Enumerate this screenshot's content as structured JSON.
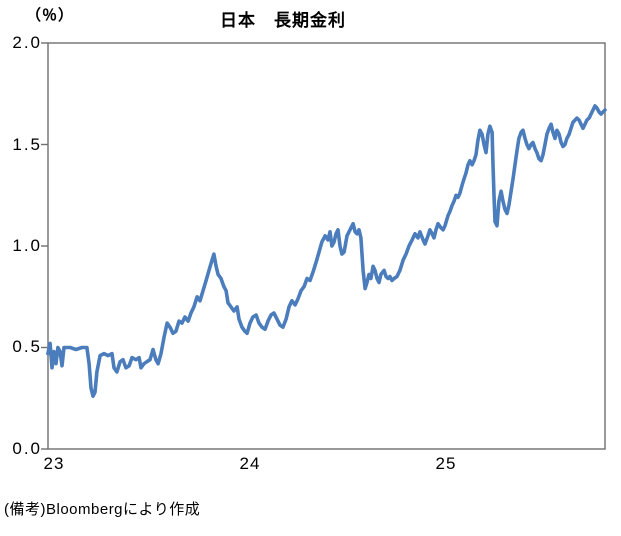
{
  "title": "日本　長期金利",
  "footer": "(備考)Bloombergにより作成",
  "chart_data": {
    "type": "line",
    "title": "日本　長期金利",
    "ylabel_unit": "（％）",
    "xlabel": "",
    "ylabel": "",
    "ylim": [
      0.0,
      2.0
    ],
    "xlim": [
      22.97,
      25.81
    ],
    "grid": false,
    "legend": "none",
    "colors": {
      "line": "#4b7dbd",
      "axis": "#6f6f6f",
      "text": "#000000"
    },
    "y_ticks": [
      {
        "label": "2.0",
        "value": 2.0
      },
      {
        "label": "1.5",
        "value": 1.5
      },
      {
        "label": "1.0",
        "value": 1.0
      },
      {
        "label": "0.5",
        "value": 0.5
      },
      {
        "label": "0.0",
        "value": 0.0
      }
    ],
    "x_ticks": [
      {
        "label": "23",
        "value": 23
      },
      {
        "label": "24",
        "value": 24
      },
      {
        "label": "25",
        "value": 25
      }
    ],
    "series": [
      {
        "name": "長期金利",
        "points": [
          [
            22.969,
            0.47
          ],
          [
            22.98,
            0.52
          ],
          [
            22.99,
            0.4
          ],
          [
            23.0,
            0.48
          ],
          [
            23.01,
            0.42
          ],
          [
            23.02,
            0.5
          ],
          [
            23.031,
            0.48
          ],
          [
            23.041,
            0.41
          ],
          [
            23.051,
            0.5
          ],
          [
            23.082,
            0.5
          ],
          [
            23.112,
            0.49
          ],
          [
            23.143,
            0.5
          ],
          [
            23.168,
            0.5
          ],
          [
            23.179,
            0.42
          ],
          [
            23.189,
            0.3
          ],
          [
            23.199,
            0.26
          ],
          [
            23.209,
            0.28
          ],
          [
            23.219,
            0.38
          ],
          [
            23.235,
            0.46
          ],
          [
            23.255,
            0.47
          ],
          [
            23.276,
            0.46
          ],
          [
            23.296,
            0.47
          ],
          [
            23.306,
            0.4
          ],
          [
            23.321,
            0.38
          ],
          [
            23.337,
            0.43
          ],
          [
            23.352,
            0.44
          ],
          [
            23.367,
            0.4
          ],
          [
            23.383,
            0.41
          ],
          [
            23.398,
            0.45
          ],
          [
            23.418,
            0.44
          ],
          [
            23.434,
            0.45
          ],
          [
            23.444,
            0.4
          ],
          [
            23.459,
            0.42
          ],
          [
            23.474,
            0.43
          ],
          [
            23.49,
            0.44
          ],
          [
            23.505,
            0.49
          ],
          [
            23.52,
            0.44
          ],
          [
            23.531,
            0.42
          ],
          [
            23.546,
            0.47
          ],
          [
            23.561,
            0.55
          ],
          [
            23.577,
            0.62
          ],
          [
            23.592,
            0.6
          ],
          [
            23.607,
            0.57
          ],
          [
            23.622,
            0.58
          ],
          [
            23.638,
            0.63
          ],
          [
            23.653,
            0.62
          ],
          [
            23.668,
            0.65
          ],
          [
            23.684,
            0.63
          ],
          [
            23.699,
            0.67
          ],
          [
            23.714,
            0.7
          ],
          [
            23.73,
            0.75
          ],
          [
            23.745,
            0.73
          ],
          [
            23.76,
            0.78
          ],
          [
            23.776,
            0.83
          ],
          [
            23.791,
            0.88
          ],
          [
            23.806,
            0.93
          ],
          [
            23.816,
            0.96
          ],
          [
            23.827,
            0.9
          ],
          [
            23.837,
            0.86
          ],
          [
            23.852,
            0.84
          ],
          [
            23.867,
            0.8
          ],
          [
            23.878,
            0.78
          ],
          [
            23.888,
            0.72
          ],
          [
            23.903,
            0.7
          ],
          [
            23.918,
            0.68
          ],
          [
            23.934,
            0.7
          ],
          [
            23.944,
            0.64
          ],
          [
            23.959,
            0.6
          ],
          [
            23.974,
            0.58
          ],
          [
            23.985,
            0.57
          ],
          [
            24.0,
            0.62
          ],
          [
            24.015,
            0.65
          ],
          [
            24.031,
            0.66
          ],
          [
            24.046,
            0.62
          ],
          [
            24.061,
            0.6
          ],
          [
            24.077,
            0.59
          ],
          [
            24.092,
            0.63
          ],
          [
            24.107,
            0.66
          ],
          [
            24.122,
            0.67
          ],
          [
            24.138,
            0.64
          ],
          [
            24.153,
            0.61
          ],
          [
            24.168,
            0.6
          ],
          [
            24.184,
            0.64
          ],
          [
            24.199,
            0.7
          ],
          [
            24.214,
            0.73
          ],
          [
            24.23,
            0.71
          ],
          [
            24.245,
            0.74
          ],
          [
            24.26,
            0.78
          ],
          [
            24.276,
            0.8
          ],
          [
            24.291,
            0.84
          ],
          [
            24.306,
            0.83
          ],
          [
            24.321,
            0.87
          ],
          [
            24.337,
            0.92
          ],
          [
            24.352,
            0.97
          ],
          [
            24.367,
            1.02
          ],
          [
            24.383,
            1.05
          ],
          [
            24.398,
            1.03
          ],
          [
            24.408,
            1.07
          ],
          [
            24.418,
            1.0
          ],
          [
            24.429,
            1.02
          ],
          [
            24.439,
            1.06
          ],
          [
            24.449,
            1.08
          ],
          [
            24.459,
            1.0
          ],
          [
            24.469,
            0.96
          ],
          [
            24.48,
            0.97
          ],
          [
            24.495,
            1.05
          ],
          [
            24.51,
            1.08
          ],
          [
            24.526,
            1.11
          ],
          [
            24.536,
            1.07
          ],
          [
            24.546,
            1.06
          ],
          [
            24.556,
            1.08
          ],
          [
            24.566,
            1.04
          ],
          [
            24.577,
            0.88
          ],
          [
            24.587,
            0.79
          ],
          [
            24.597,
            0.82
          ],
          [
            24.607,
            0.86
          ],
          [
            24.617,
            0.84
          ],
          [
            24.628,
            0.9
          ],
          [
            24.638,
            0.88
          ],
          [
            24.648,
            0.84
          ],
          [
            24.658,
            0.82
          ],
          [
            24.668,
            0.86
          ],
          [
            24.684,
            0.88
          ],
          [
            24.694,
            0.85
          ],
          [
            24.704,
            0.84
          ],
          [
            24.714,
            0.85
          ],
          [
            24.724,
            0.83
          ],
          [
            24.735,
            0.84
          ],
          [
            24.75,
            0.85
          ],
          [
            24.765,
            0.88
          ],
          [
            24.781,
            0.93
          ],
          [
            24.796,
            0.96
          ],
          [
            24.811,
            1.0
          ],
          [
            24.827,
            1.03
          ],
          [
            24.842,
            1.06
          ],
          [
            24.857,
            1.04
          ],
          [
            24.867,
            1.07
          ],
          [
            24.883,
            1.03
          ],
          [
            24.893,
            1.01
          ],
          [
            24.908,
            1.05
          ],
          [
            24.918,
            1.08
          ],
          [
            24.929,
            1.06
          ],
          [
            24.939,
            1.04
          ],
          [
            24.949,
            1.08
          ],
          [
            24.959,
            1.11
          ],
          [
            24.974,
            1.09
          ],
          [
            24.985,
            1.08
          ],
          [
            24.995,
            1.1
          ],
          [
            25.01,
            1.15
          ],
          [
            25.02,
            1.17
          ],
          [
            25.031,
            1.2
          ],
          [
            25.041,
            1.22
          ],
          [
            25.051,
            1.25
          ],
          [
            25.061,
            1.24
          ],
          [
            25.071,
            1.26
          ],
          [
            25.082,
            1.3
          ],
          [
            25.092,
            1.33
          ],
          [
            25.102,
            1.36
          ],
          [
            25.112,
            1.4
          ],
          [
            25.122,
            1.42
          ],
          [
            25.133,
            1.4
          ],
          [
            25.143,
            1.42
          ],
          [
            25.153,
            1.45
          ],
          [
            25.163,
            1.52
          ],
          [
            25.173,
            1.57
          ],
          [
            25.184,
            1.55
          ],
          [
            25.194,
            1.5
          ],
          [
            25.204,
            1.46
          ],
          [
            25.214,
            1.55
          ],
          [
            25.224,
            1.59
          ],
          [
            25.235,
            1.56
          ],
          [
            25.24,
            1.4
          ],
          [
            25.245,
            1.25
          ],
          [
            25.25,
            1.12
          ],
          [
            25.26,
            1.1
          ],
          [
            25.27,
            1.22
          ],
          [
            25.281,
            1.27
          ],
          [
            25.291,
            1.22
          ],
          [
            25.301,
            1.18
          ],
          [
            25.311,
            1.16
          ],
          [
            25.321,
            1.2
          ],
          [
            25.332,
            1.27
          ],
          [
            25.342,
            1.33
          ],
          [
            25.352,
            1.4
          ],
          [
            25.362,
            1.47
          ],
          [
            25.372,
            1.53
          ],
          [
            25.383,
            1.56
          ],
          [
            25.393,
            1.57
          ],
          [
            25.403,
            1.53
          ],
          [
            25.413,
            1.5
          ],
          [
            25.423,
            1.48
          ],
          [
            25.434,
            1.5
          ],
          [
            25.444,
            1.51
          ],
          [
            25.454,
            1.48
          ],
          [
            25.464,
            1.46
          ],
          [
            25.474,
            1.43
          ],
          [
            25.485,
            1.42
          ],
          [
            25.495,
            1.45
          ],
          [
            25.505,
            1.5
          ],
          [
            25.515,
            1.55
          ],
          [
            25.526,
            1.58
          ],
          [
            25.536,
            1.6
          ],
          [
            25.546,
            1.56
          ],
          [
            25.556,
            1.53
          ],
          [
            25.566,
            1.57
          ],
          [
            25.577,
            1.55
          ],
          [
            25.587,
            1.51
          ],
          [
            25.597,
            1.49
          ],
          [
            25.607,
            1.5
          ],
          [
            25.617,
            1.53
          ],
          [
            25.628,
            1.55
          ],
          [
            25.638,
            1.58
          ],
          [
            25.648,
            1.61
          ],
          [
            25.658,
            1.62
          ],
          [
            25.668,
            1.63
          ],
          [
            25.679,
            1.62
          ],
          [
            25.689,
            1.6
          ],
          [
            25.699,
            1.58
          ],
          [
            25.709,
            1.6
          ],
          [
            25.719,
            1.62
          ],
          [
            25.73,
            1.63
          ],
          [
            25.74,
            1.65
          ],
          [
            25.75,
            1.67
          ],
          [
            25.76,
            1.69
          ],
          [
            25.77,
            1.68
          ],
          [
            25.781,
            1.66
          ],
          [
            25.791,
            1.65
          ],
          [
            25.801,
            1.66
          ],
          [
            25.811,
            1.67
          ]
        ]
      }
    ]
  }
}
